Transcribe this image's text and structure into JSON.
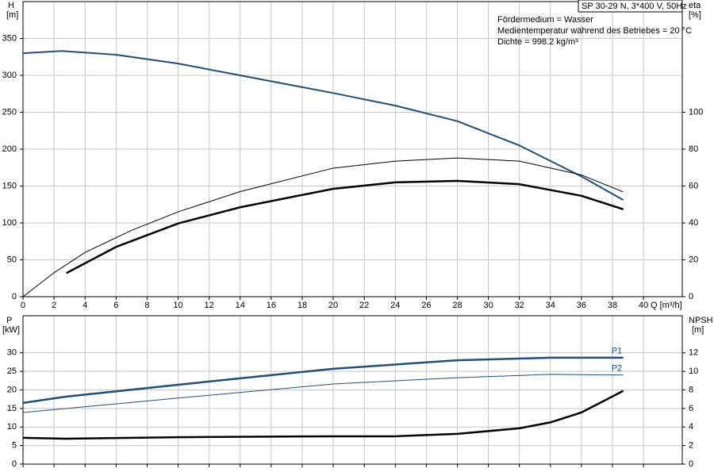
{
  "chart_data": [
    {
      "type": "line",
      "y_label": "H",
      "y_unit": "[m]",
      "y2_label": "eta",
      "y2_unit": "[%]",
      "x_label": "Q [m³/h]",
      "info_box": "SP 30-29 N, 3*400 V, 50Hz",
      "info_lines": [
        "Fördermedium = Wasser",
        "Medientemperatur während des Betriebes = 20 °C",
        "Dichte = 998.2 kg/m³"
      ],
      "xlim": [
        0,
        42.5
      ],
      "xticks": [
        0,
        2,
        4,
        6,
        8,
        10,
        12,
        14,
        16,
        18,
        20,
        22,
        24,
        26,
        28,
        30,
        32,
        34,
        36,
        38,
        40
      ],
      "ylim": [
        0,
        400
      ],
      "yticks": [
        0,
        50,
        100,
        150,
        200,
        250,
        300,
        350
      ],
      "y2lim": [
        0,
        160
      ],
      "y2ticks": [
        0,
        20,
        40,
        60,
        80,
        100
      ],
      "grid": true,
      "series": [
        {
          "color": "#1f4e79",
          "linewidth": 2,
          "x": [
            0,
            2.5,
            6,
            10,
            14,
            18,
            20,
            24,
            28,
            32,
            36,
            38.7
          ],
          "values": [
            330,
            333,
            328,
            316,
            300,
            284,
            276,
            259,
            238,
            205,
            163,
            131
          ]
        },
        {
          "color": "#000000",
          "linewidth": 1,
          "axis": "y2",
          "x": [
            0,
            2,
            4,
            7,
            10,
            14,
            20,
            24,
            28,
            32,
            36,
            38.7
          ],
          "values": [
            0,
            13,
            24,
            36,
            46,
            57,
            69.7,
            73.5,
            75.2,
            73.5,
            66,
            56.8
          ]
        },
        {
          "color": "#000000",
          "linewidth": 2.5,
          "axis": "y2",
          "x": [
            2.8,
            6,
            10,
            14,
            20,
            24,
            28,
            32,
            36,
            38.7
          ],
          "values": [
            12.8,
            27,
            39.7,
            48.5,
            58.5,
            62,
            62.8,
            61,
            54.7,
            47.4
          ]
        }
      ]
    },
    {
      "type": "line",
      "y_label": "P",
      "y_unit": "[kW]",
      "y2_label": "NPSH",
      "y2_unit": "[m]",
      "xlim": [
        0,
        42.5
      ],
      "ylim": [
        0,
        40
      ],
      "yticks": [
        0,
        5,
        10,
        15,
        20,
        25,
        30
      ],
      "y2lim": [
        0,
        16
      ],
      "y2ticks": [
        0,
        2,
        4,
        6,
        8,
        10,
        12
      ],
      "grid": true,
      "series": [
        {
          "name": "P1",
          "color": "#1f4e79",
          "linewidth": 2.5,
          "x": [
            0,
            2.8,
            10,
            20,
            28,
            34,
            38.7
          ],
          "values": [
            16.5,
            18.2,
            21.4,
            25.7,
            28,
            28.7,
            28.7
          ]
        },
        {
          "name": "P2",
          "color": "#1f4e79",
          "linewidth": 1,
          "x": [
            0,
            10,
            20,
            28,
            34,
            38.7
          ],
          "values": [
            13.9,
            17.8,
            21.6,
            23.3,
            24.2,
            24
          ]
        },
        {
          "color": "#000000",
          "linewidth": 2.5,
          "axis": "y2",
          "x": [
            0,
            2.8,
            10,
            20,
            24,
            28,
            32,
            34,
            36,
            38.7
          ],
          "values": [
            2.83,
            2.74,
            2.9,
            3.0,
            3.0,
            3.26,
            3.86,
            4.5,
            5.57,
            7.9
          ]
        }
      ]
    }
  ]
}
